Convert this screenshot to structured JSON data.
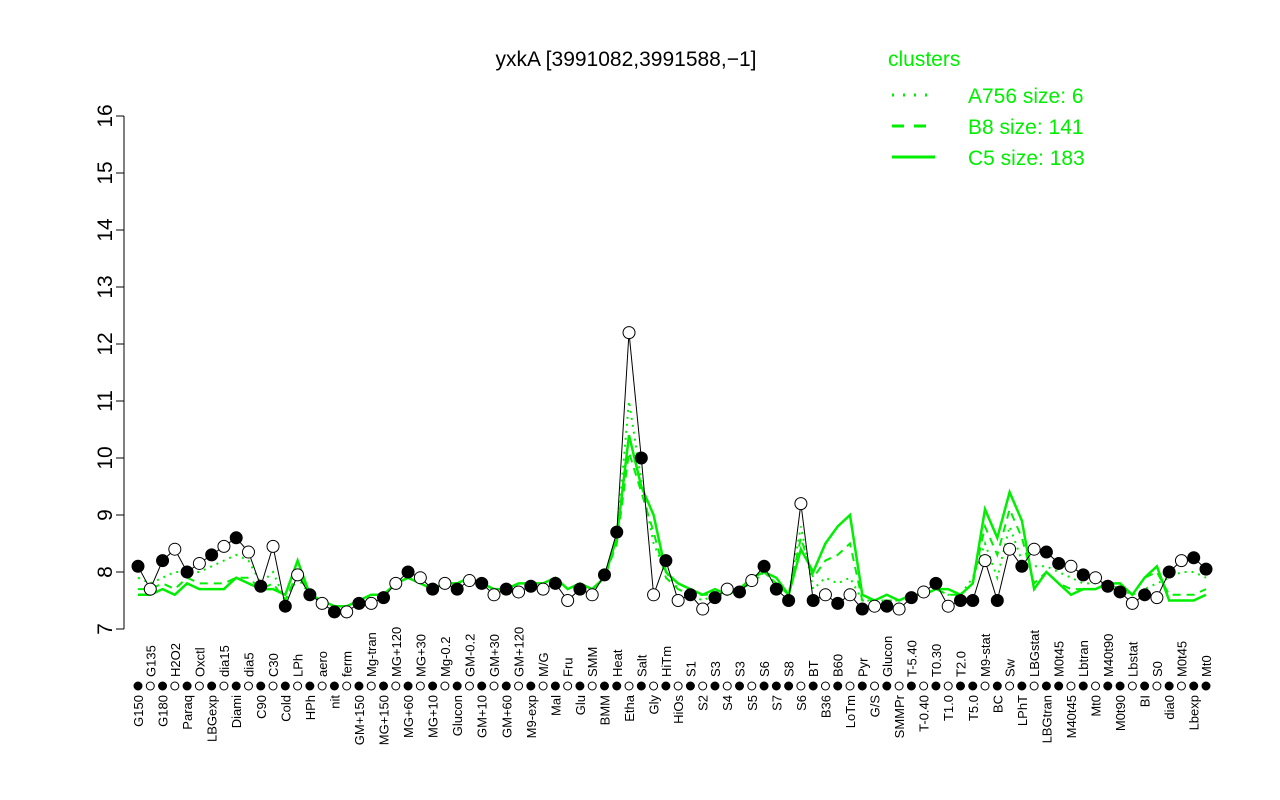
{
  "chart_data": {
    "type": "line",
    "title": "yxkA [3991082,3991588,−1]",
    "xlabel": "",
    "ylabel": "",
    "ylim": [
      7,
      16
    ],
    "yticks": [
      7,
      8,
      9,
      10,
      11,
      12,
      13,
      14,
      15,
      16
    ],
    "grid": false,
    "legend": {
      "title": "clusters",
      "placement": "top-right",
      "entries": [
        {
          "label": "A756 size: 6",
          "style": "dotted"
        },
        {
          "label": "B8 size: 141",
          "style": "dashed"
        },
        {
          "label": "C5 size: 183",
          "style": "solid"
        }
      ],
      "color": "#00ee00"
    },
    "categories": [
      "G150",
      "G135",
      "G180",
      "H2O2",
      "Paraq",
      "Oxctl",
      "LBGexp",
      "dia15",
      "Diami",
      "dia5",
      "C90",
      "C30",
      "Cold",
      "LPh",
      "HPh",
      "aero",
      "nit",
      "ferm",
      "GM+150",
      "Mg-tran",
      "MG+150",
      "MG+120",
      "MG+60",
      "MG+30",
      "MG+10",
      "Mg-0.2",
      "Glucon",
      "GM-0.2",
      "GM+10",
      "GM+30",
      "GM+60",
      "GM+120",
      "M9-exp",
      "M/G",
      "Mal",
      "Fru",
      "Glu",
      "SMM",
      "BMM",
      "Heat",
      "Etha",
      "Salt",
      "Gly",
      "HiTm",
      "HiOs",
      "S1",
      "S2",
      "S3",
      "S4",
      "S3",
      "S5",
      "S6",
      "S7",
      "S8",
      "S6",
      "BT",
      "B36",
      "B60",
      "LoTm",
      "Pyr",
      "G/S",
      "Glucon",
      "SMMPr",
      "T-5.40",
      "T-0.40",
      "T0.30",
      "T1.0",
      "T2.0",
      "T5.0",
      "M9-stat",
      "BC",
      "Sw",
      "LPhT",
      "LBGstat",
      "LBGtran",
      "M0t45",
      "M40t45",
      "Lbtran",
      "Mt0",
      "M40t90",
      "M0t90",
      "Lbstat",
      "BI",
      "S0",
      "dia0",
      "M0t45",
      "Lbexp",
      "Mt0"
    ],
    "values": [
      8.1,
      7.7,
      8.2,
      8.4,
      8.0,
      8.15,
      8.3,
      8.45,
      8.6,
      8.35,
      7.75,
      8.45,
      7.4,
      7.95,
      7.6,
      7.45,
      7.3,
      7.3,
      7.45,
      7.45,
      7.55,
      7.8,
      8.0,
      7.9,
      7.7,
      7.8,
      7.7,
      7.85,
      7.8,
      7.6,
      7.7,
      7.65,
      7.75,
      7.7,
      7.8,
      7.5,
      7.7,
      7.6,
      7.95,
      8.7,
      12.2,
      10.0,
      7.6,
      8.2,
      7.5,
      7.6,
      7.35,
      7.55,
      7.7,
      7.65,
      7.85,
      8.1,
      7.7,
      7.5,
      9.2,
      7.5,
      7.6,
      7.45,
      7.6,
      7.35,
      7.4,
      7.4,
      7.35,
      7.55,
      7.65,
      7.8,
      7.4,
      7.5,
      7.5,
      8.2,
      7.5,
      8.4,
      8.1,
      8.4,
      8.35,
      8.15,
      8.1,
      7.95,
      7.9,
      7.75,
      7.65,
      7.45,
      7.6,
      7.55,
      8.0,
      8.2,
      8.25,
      8.05
    ],
    "filled": [
      1,
      0,
      1,
      0,
      1,
      0,
      1,
      0,
      1,
      0,
      1,
      0,
      1,
      0,
      1,
      0,
      1,
      0,
      1,
      0,
      1,
      0,
      1,
      0,
      1,
      0,
      1,
      0,
      1,
      0,
      1,
      0,
      1,
      0,
      1,
      0,
      1,
      0,
      1,
      1,
      0,
      1,
      0,
      1,
      0,
      1,
      0,
      1,
      0,
      1,
      0,
      1,
      1,
      1,
      0,
      1,
      0,
      1,
      0,
      1,
      0,
      1,
      0,
      1,
      0,
      1,
      0,
      1,
      1,
      0,
      1,
      0,
      1,
      0,
      1,
      1,
      0,
      1,
      0,
      1,
      1,
      0,
      1,
      0,
      1,
      0,
      1,
      1
    ],
    "series": [
      {
        "name": "C5 size: 183",
        "style": "solid",
        "values": [
          7.6,
          7.6,
          7.7,
          7.6,
          7.8,
          7.7,
          7.7,
          7.7,
          7.9,
          7.8,
          7.7,
          7.7,
          7.6,
          8.2,
          7.6,
          7.5,
          7.4,
          7.4,
          7.5,
          7.6,
          7.6,
          7.8,
          7.9,
          7.8,
          7.7,
          7.8,
          7.8,
          7.9,
          7.8,
          7.7,
          7.7,
          7.8,
          7.8,
          7.8,
          7.9,
          7.7,
          7.8,
          7.7,
          7.9,
          8.6,
          10.4,
          9.5,
          9.0,
          8.0,
          7.8,
          7.7,
          7.6,
          7.7,
          7.6,
          7.7,
          7.9,
          8.0,
          7.9,
          7.6,
          8.4,
          8.0,
          8.5,
          8.8,
          9.0,
          7.6,
          7.5,
          7.6,
          7.5,
          7.6,
          7.6,
          7.7,
          7.7,
          7.6,
          7.8,
          9.1,
          8.6,
          9.4,
          8.9,
          7.7,
          8.0,
          7.8,
          7.6,
          7.7,
          7.7,
          7.8,
          7.8,
          7.6,
          7.9,
          8.1,
          7.5,
          7.5,
          7.5,
          7.6
        ]
      },
      {
        "name": "B8 size: 141",
        "style": "dashed",
        "values": [
          7.7,
          7.7,
          7.8,
          7.7,
          7.9,
          7.8,
          7.8,
          7.8,
          7.9,
          7.9,
          7.7,
          7.8,
          7.5,
          8.0,
          7.6,
          7.5,
          7.4,
          7.4,
          7.5,
          7.6,
          7.6,
          7.8,
          7.9,
          7.8,
          7.7,
          7.8,
          7.8,
          7.9,
          7.8,
          7.7,
          7.7,
          7.8,
          7.8,
          7.8,
          7.9,
          7.7,
          7.8,
          7.7,
          7.9,
          8.5,
          10.1,
          9.4,
          8.7,
          7.9,
          7.7,
          7.6,
          7.6,
          7.6,
          7.6,
          7.7,
          7.8,
          8.0,
          7.8,
          7.6,
          8.6,
          7.9,
          8.2,
          8.3,
          8.5,
          7.5,
          7.5,
          7.5,
          7.5,
          7.6,
          7.6,
          7.7,
          7.6,
          7.6,
          7.8,
          8.8,
          8.3,
          9.1,
          8.6,
          7.8,
          8.0,
          7.8,
          7.7,
          7.7,
          7.7,
          7.8,
          7.8,
          7.6,
          7.9,
          8.0,
          7.6,
          7.6,
          7.6,
          7.7
        ]
      },
      {
        "name": "A756 size: 6",
        "style": "dotted",
        "values": [
          7.9,
          7.8,
          7.9,
          8.0,
          8.0,
          8.0,
          8.1,
          8.2,
          8.3,
          8.2,
          7.8,
          8.0,
          7.5,
          7.9,
          7.6,
          7.5,
          7.4,
          7.4,
          7.5,
          7.6,
          7.6,
          7.8,
          7.9,
          7.8,
          7.7,
          7.8,
          7.8,
          7.9,
          7.8,
          7.7,
          7.7,
          7.8,
          7.8,
          7.8,
          7.9,
          7.7,
          7.8,
          7.7,
          7.9,
          8.6,
          11.0,
          9.6,
          8.5,
          8.0,
          7.7,
          7.6,
          7.5,
          7.6,
          7.6,
          7.7,
          7.8,
          8.0,
          7.8,
          7.6,
          8.8,
          7.7,
          7.9,
          7.8,
          7.9,
          7.5,
          7.5,
          7.5,
          7.5,
          7.6,
          7.6,
          7.7,
          7.6,
          7.6,
          7.9,
          8.5,
          7.9,
          8.8,
          8.2,
          8.1,
          8.1,
          8.0,
          7.9,
          7.8,
          7.8,
          7.8,
          7.7,
          7.6,
          7.7,
          7.8,
          7.9,
          8.0,
          8.0,
          7.9
        ]
      }
    ]
  }
}
